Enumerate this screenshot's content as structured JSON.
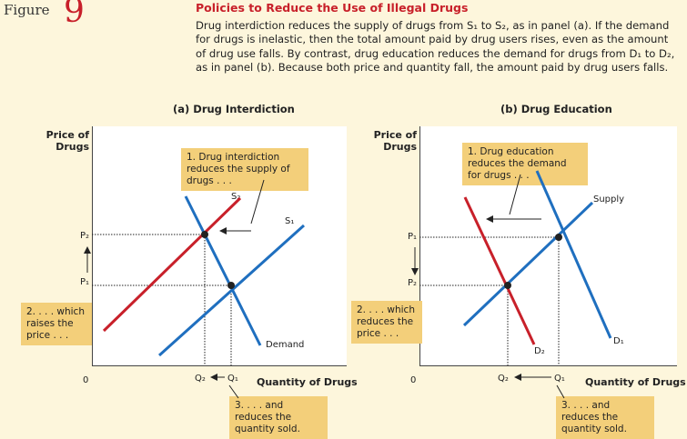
{
  "figure": {
    "label": "Figure",
    "number": "9"
  },
  "title": "Policies to Reduce the Use of Illegal Drugs",
  "caption": "Drug interdiction reduces the supply of drugs from S₁ to S₂, as in panel (a). If the demand for drugs is inelastic, then the total amount paid by drug users rises, even as the amount of drug use falls. By contrast, drug education reduces the demand for drugs from D₁ to D₂, as in panel (b). Because both price and quantity fall, the amount paid by drug users falls.",
  "panel_a": {
    "title": "(a) Drug Interdiction",
    "y_axis_label": "Price of Drugs",
    "x_axis_label": "Quantity of Drugs",
    "origin": "0",
    "price_high": "P₂",
    "price_low": "P₁",
    "qty_low": "Q₂",
    "qty_high": "Q₁",
    "supply_old": "S₁",
    "supply_new": "S₂",
    "demand": "Demand",
    "note1": "1. Drug interdiction reduces the supply of drugs . . .",
    "note2": "2. . . . which raises the price . . .",
    "note3": "3. . . . and reduces the quantity sold.",
    "colors": {
      "shifted_curve": "#c8202a",
      "curve": "#1f6fbf",
      "note_bg": "#f3cf7a"
    }
  },
  "panel_b": {
    "title": "(b) Drug Education",
    "y_axis_label": "Price of Drugs",
    "x_axis_label": "Quantity of Drugs",
    "origin": "0",
    "price_high": "P₁",
    "price_low": "P₂",
    "qty_low": "Q₂",
    "qty_high": "Q₁",
    "supply": "Supply",
    "demand_old": "D₁",
    "demand_new": "D₂",
    "note1": "1. Drug education reduces the demand for drugs . . .",
    "note2": "2. . . . which reduces the price . . .",
    "note3": "3. . . . and reduces the quantity sold."
  }
}
